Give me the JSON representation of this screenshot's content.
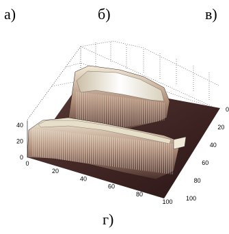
{
  "figure": {
    "labels": {
      "a": "а)",
      "b": "б)",
      "v": "в)",
      "g": "г)"
    }
  },
  "chart_data": {
    "type": "surface",
    "title": "",
    "x_ticks": [
      "0",
      "20",
      "40",
      "60",
      "80",
      "100"
    ],
    "y_ticks": [
      "0",
      "20",
      "40",
      "60",
      "80",
      "100"
    ],
    "z_ticks": [
      "0",
      "20",
      "40"
    ],
    "xlim": [
      0,
      100
    ],
    "ylim": [
      0,
      100
    ],
    "zlim": [
      0,
      45
    ],
    "grid": true,
    "colormap": "pink-brown",
    "features": [
      {
        "name": "",
        "y_range": [
          0,
          60
        ],
        "x_range": [
          0,
          100
        ],
        "height": 40
      },
      {
        "name": "",
        "y_range": [
          60,
          80
        ],
        "x_range": [
          0,
          60
        ],
        "height": 20
      }
    ]
  }
}
